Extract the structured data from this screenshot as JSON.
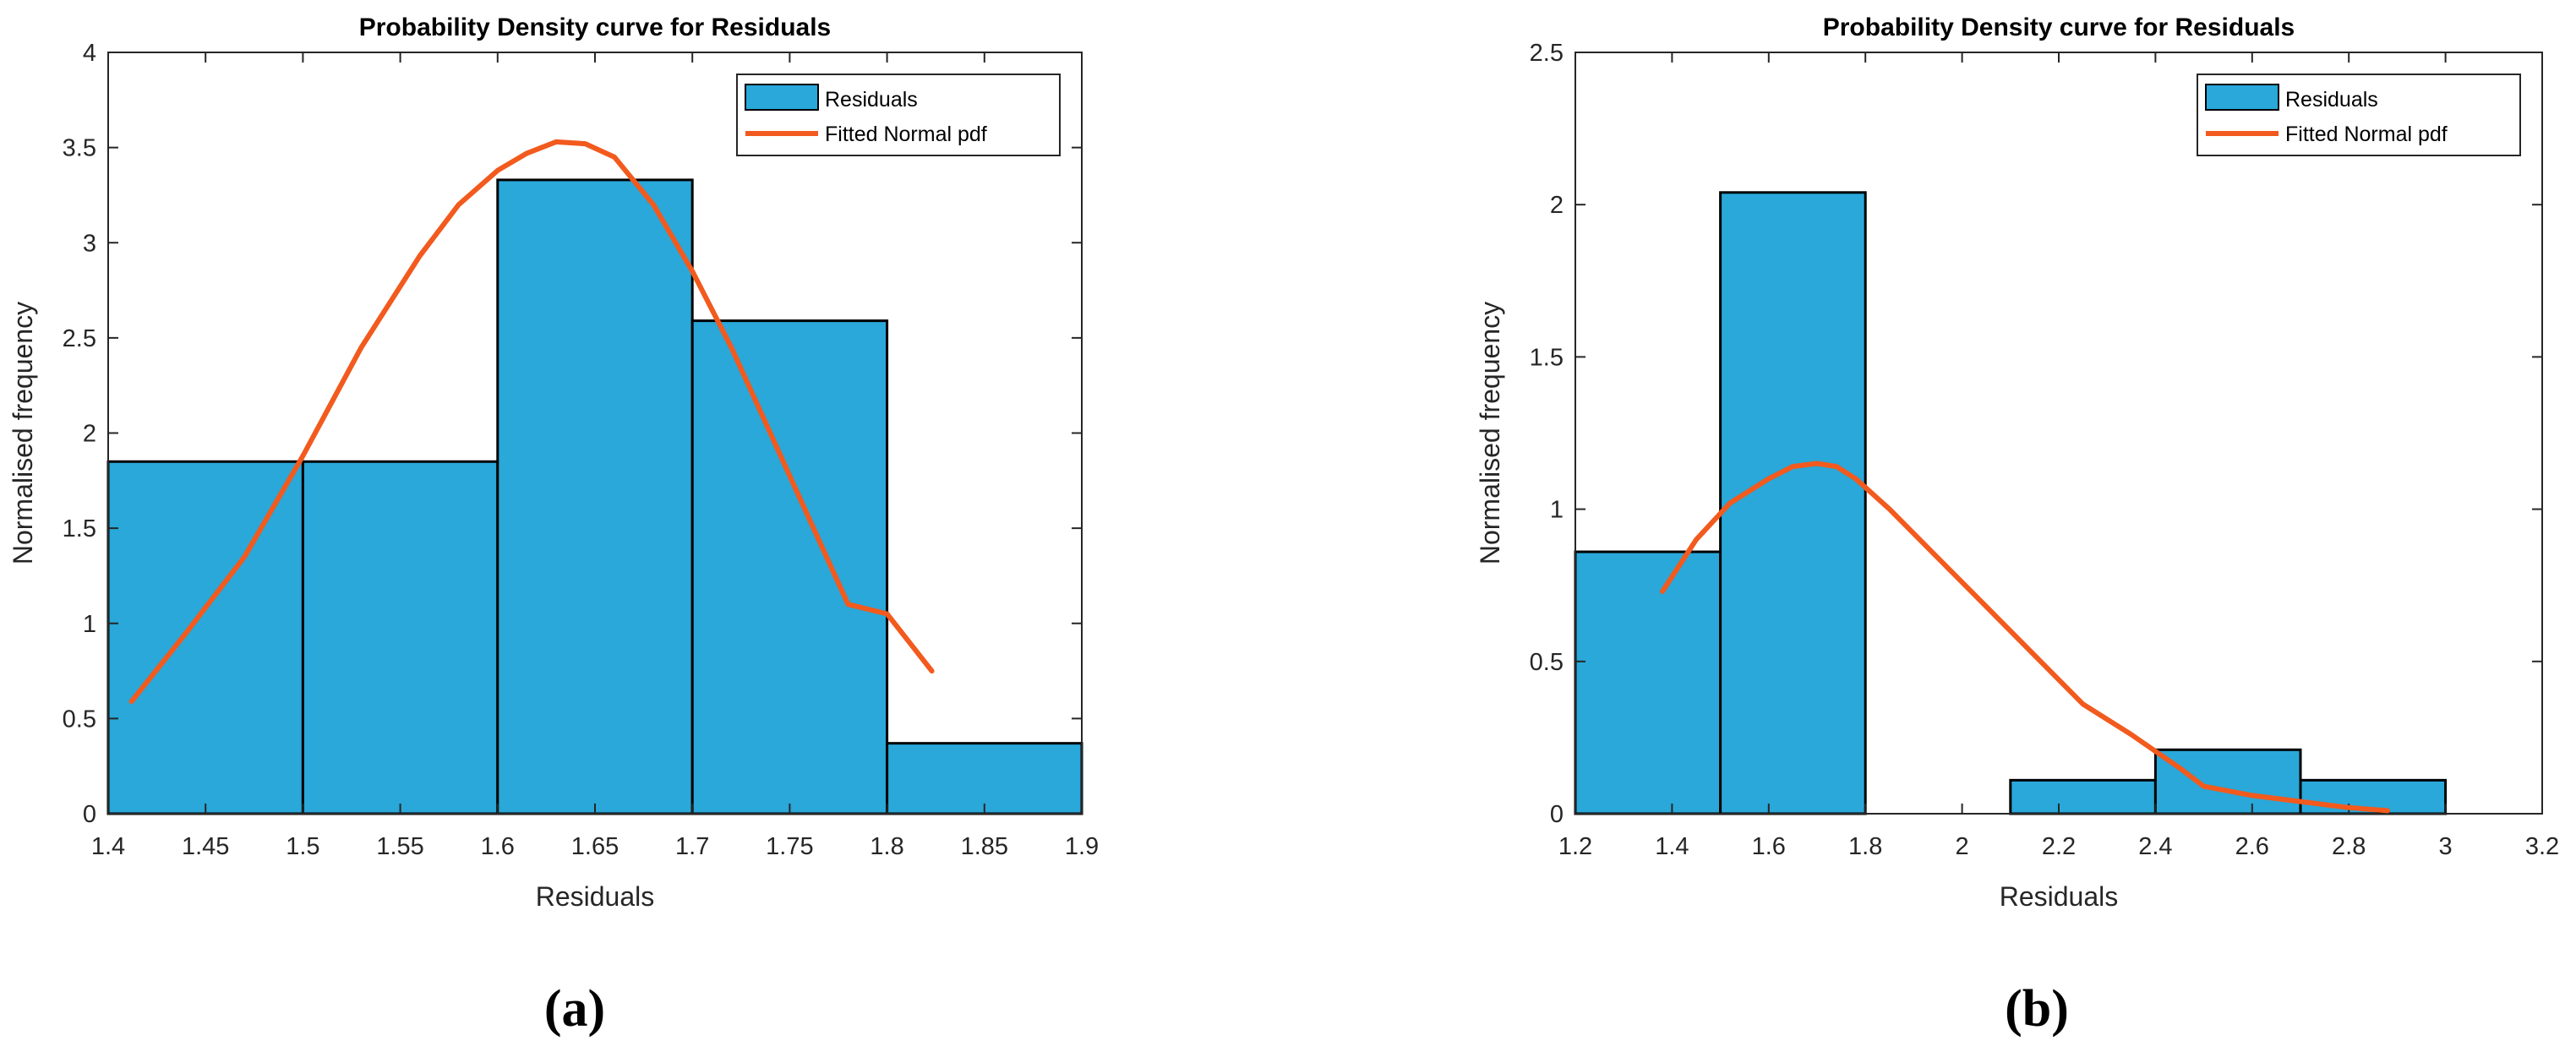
{
  "chart_data": [
    {
      "type": "bar",
      "panel_label": "(a)",
      "title": "Probability Density curve for Residuals",
      "xlabel": "Residuals",
      "ylabel": "Normalised frequency",
      "xlim": [
        1.4,
        1.9
      ],
      "ylim": [
        0,
        4
      ],
      "xticks": [
        1.4,
        1.45,
        1.5,
        1.55,
        1.6,
        1.65,
        1.7,
        1.75,
        1.8,
        1.85,
        1.9
      ],
      "xtick_labels": [
        "1.4",
        "1.45",
        "1.5",
        "1.55",
        "1.6",
        "1.65",
        "1.7",
        "1.75",
        "1.8",
        "1.85",
        "1.9"
      ],
      "yticks": [
        0,
        0.5,
        1,
        1.5,
        2,
        2.5,
        3,
        3.5,
        4
      ],
      "ytick_labels": [
        "0",
        "0.5",
        "1",
        "1.5",
        "2",
        "2.5",
        "3",
        "3.5",
        "4"
      ],
      "grid": false,
      "legend_position": "top-right",
      "bar_color": "#29a8d9",
      "curve_color": "#f25a1e",
      "bins": [
        {
          "x0": 1.4,
          "x1": 1.5,
          "value": 1.85
        },
        {
          "x0": 1.5,
          "x1": 1.6,
          "value": 1.85
        },
        {
          "x0": 1.6,
          "x1": 1.7,
          "value": 3.33
        },
        {
          "x0": 1.7,
          "x1": 1.8,
          "value": 2.59
        },
        {
          "x0": 1.8,
          "x1": 1.9,
          "value": 0.37
        }
      ],
      "curve": {
        "x": [
          1.412,
          1.44,
          1.47,
          1.5,
          1.53,
          1.56,
          1.58,
          1.6,
          1.615,
          1.63,
          1.645,
          1.66,
          1.68,
          1.7,
          1.72,
          1.74,
          1.76,
          1.78,
          1.8,
          1.823
        ],
        "y": [
          0.59,
          0.95,
          1.35,
          1.88,
          2.45,
          2.93,
          3.2,
          3.38,
          3.47,
          3.53,
          3.52,
          3.45,
          3.2,
          2.85,
          2.45,
          2.0,
          1.55,
          1.1,
          1.05,
          0.75
        ]
      },
      "legend": [
        {
          "label": "Residuals",
          "kind": "bar"
        },
        {
          "label": "Fitted Normal pdf",
          "kind": "line"
        }
      ]
    },
    {
      "type": "bar",
      "panel_label": "(b)",
      "title": "Probability Density curve for Residuals",
      "xlabel": "Residuals",
      "ylabel": "Normalised frequency",
      "xlim": [
        1.2,
        3.2
      ],
      "ylim": [
        0,
        2.5
      ],
      "xticks": [
        1.2,
        1.4,
        1.6,
        1.8,
        2.0,
        2.2,
        2.4,
        2.6,
        2.8,
        3.0,
        3.2
      ],
      "xtick_labels": [
        "1.2",
        "1.4",
        "1.6",
        "1.8",
        "2",
        "2.2",
        "2.4",
        "2.6",
        "2.8",
        "3",
        "3.2"
      ],
      "yticks": [
        0,
        0.5,
        1,
        1.5,
        2,
        2.5
      ],
      "ytick_labels": [
        "0",
        "0.5",
        "1",
        "1.5",
        "2",
        "2.5"
      ],
      "grid": false,
      "legend_position": "top-right",
      "bar_color": "#29a8d9",
      "curve_color": "#f25a1e",
      "bins": [
        {
          "x0": 1.2,
          "x1": 1.5,
          "value": 0.86
        },
        {
          "x0": 1.5,
          "x1": 1.8,
          "value": 2.04
        },
        {
          "x0": 1.8,
          "x1": 2.1,
          "value": 0.0
        },
        {
          "x0": 2.1,
          "x1": 2.4,
          "value": 0.11
        },
        {
          "x0": 2.4,
          "x1": 2.7,
          "value": 0.21
        },
        {
          "x0": 2.7,
          "x1": 3.0,
          "value": 0.11
        }
      ],
      "curve": {
        "x": [
          1.38,
          1.45,
          1.52,
          1.6,
          1.65,
          1.7,
          1.74,
          1.78,
          1.85,
          1.95,
          2.05,
          2.15,
          2.25,
          2.35,
          2.45,
          2.5,
          2.6,
          2.7,
          2.8,
          2.88
        ],
        "y": [
          0.73,
          0.9,
          1.02,
          1.1,
          1.14,
          1.15,
          1.14,
          1.1,
          1.0,
          0.84,
          0.68,
          0.52,
          0.36,
          0.26,
          0.15,
          0.09,
          0.06,
          0.04,
          0.02,
          0.01
        ]
      },
      "legend": [
        {
          "label": "Residuals",
          "kind": "bar"
        },
        {
          "label": "Fitted Normal pdf",
          "kind": "line"
        }
      ]
    }
  ]
}
